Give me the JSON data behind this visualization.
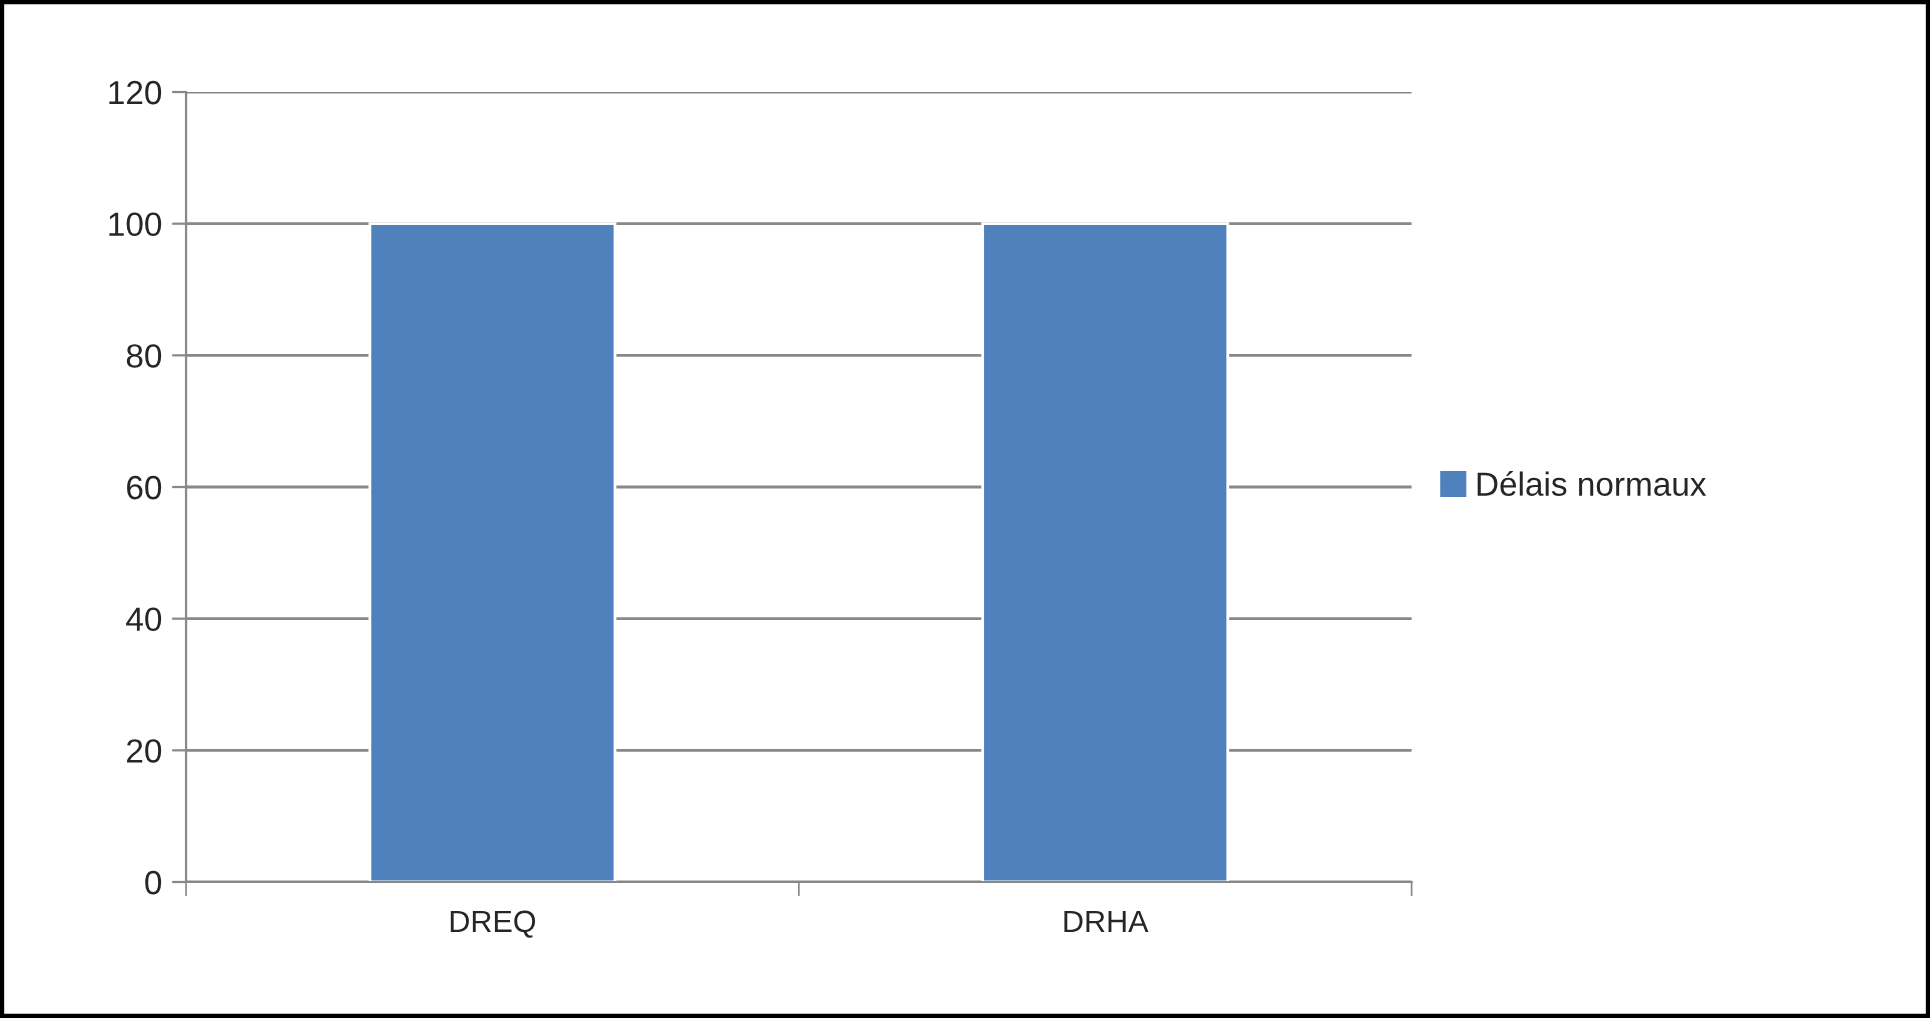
{
  "chart_data": {
    "type": "bar",
    "categories": [
      "DREQ",
      "DRHA"
    ],
    "series": [
      {
        "name": "Délais normaux",
        "color": "#4f81bd",
        "values": [
          100,
          100
        ]
      }
    ],
    "ylim": [
      0,
      120
    ],
    "yticks": [
      0,
      20,
      40,
      60,
      80,
      100,
      120
    ],
    "grid": "y",
    "legend": "right"
  }
}
